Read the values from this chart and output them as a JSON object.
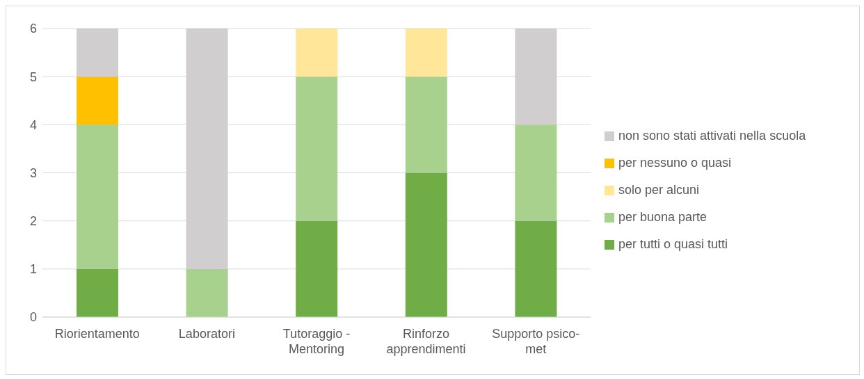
{
  "chart_data": {
    "type": "bar",
    "stacked": true,
    "categories": [
      "Riorientamento",
      "Laboratori",
      "Tutoraggio - Mentoring",
      "Rinforzo apprendimenti",
      "Supporto psico-met"
    ],
    "series": [
      {
        "name": "per tutti o quasi tutti",
        "color": "#70ad47",
        "values": [
          1,
          0,
          2,
          3,
          2
        ]
      },
      {
        "name": "per buona parte",
        "color": "#a9d18e",
        "values": [
          3,
          1,
          3,
          2,
          2
        ]
      },
      {
        "name": "solo per alcuni",
        "color": "#ffe699",
        "values": [
          0,
          0,
          1,
          1,
          0
        ]
      },
      {
        "name": "per nessuno o quasi",
        "color": "#ffc000",
        "values": [
          1,
          0,
          0,
          0,
          0
        ]
      },
      {
        "name": "non sono stati attivati nella scuola",
        "color": "#d0cece",
        "values": [
          1,
          5,
          0,
          0,
          2
        ]
      }
    ],
    "ylim": [
      0,
      6
    ],
    "yticks": [
      0,
      1,
      2,
      3,
      4,
      5,
      6
    ],
    "grid": "y",
    "legend": "right"
  }
}
